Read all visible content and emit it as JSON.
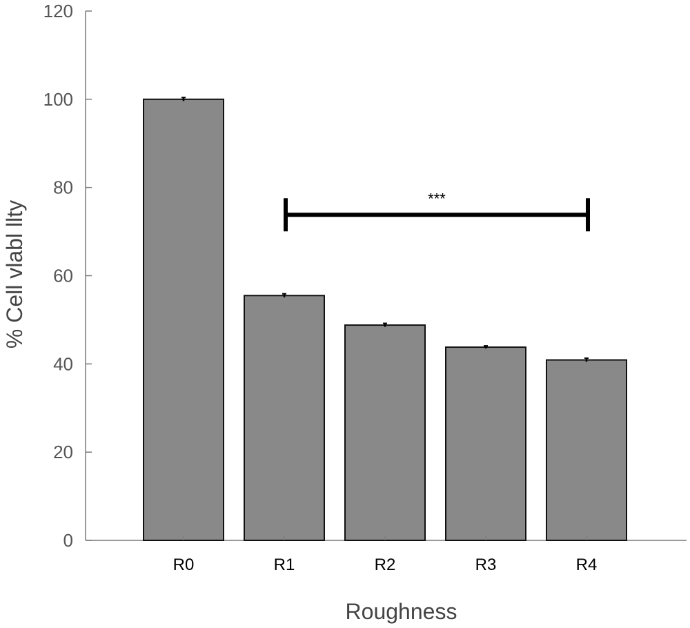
{
  "chart_data": {
    "type": "bar",
    "categories": [
      "R0",
      "R1",
      "R2",
      "R3",
      "R4"
    ],
    "values": [
      100,
      55.5,
      48.8,
      43.8,
      40.9
    ],
    "error": [
      0.4,
      0.4,
      0.4,
      0.3,
      0.4
    ],
    "title": "",
    "xlabel": "Roughness",
    "ylabel": "% Cell vlabl llty",
    "ylim": [
      0,
      120
    ],
    "yticks": [
      0,
      20,
      40,
      60,
      80,
      100,
      120
    ],
    "grid": false,
    "bar_color": "#898989",
    "annotation": {
      "text": "***",
      "from_category": "R1",
      "to_category": "R4",
      "y": 73.8
    }
  }
}
